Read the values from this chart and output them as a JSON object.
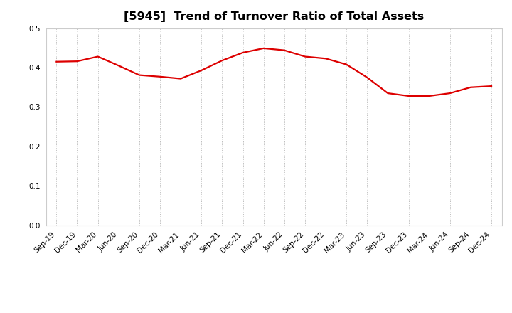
{
  "title": "[5945]  Trend of Turnover Ratio of Total Assets",
  "labels": [
    "Sep-19",
    "Dec-19",
    "Mar-20",
    "Jun-20",
    "Sep-20",
    "Dec-20",
    "Mar-21",
    "Jun-21",
    "Sep-21",
    "Dec-21",
    "Mar-22",
    "Jun-22",
    "Sep-22",
    "Dec-22",
    "Mar-23",
    "Jun-23",
    "Sep-23",
    "Dec-23",
    "Mar-24",
    "Jun-24",
    "Sep-24",
    "Dec-24"
  ],
  "values": [
    0.415,
    0.416,
    0.428,
    0.405,
    0.381,
    0.377,
    0.372,
    0.393,
    0.418,
    0.438,
    0.449,
    0.444,
    0.428,
    0.423,
    0.408,
    0.375,
    0.335,
    0.328,
    0.328,
    0.335,
    0.35,
    0.353
  ],
  "line_color": "#dd0000",
  "line_width": 1.6,
  "ylim": [
    0.0,
    0.5
  ],
  "yticks": [
    0.0,
    0.1,
    0.2,
    0.3,
    0.4,
    0.5
  ],
  "grid_color": "#bbbbbb",
  "background_color": "#ffffff",
  "title_fontsize": 11.5,
  "tick_fontsize": 7.5
}
